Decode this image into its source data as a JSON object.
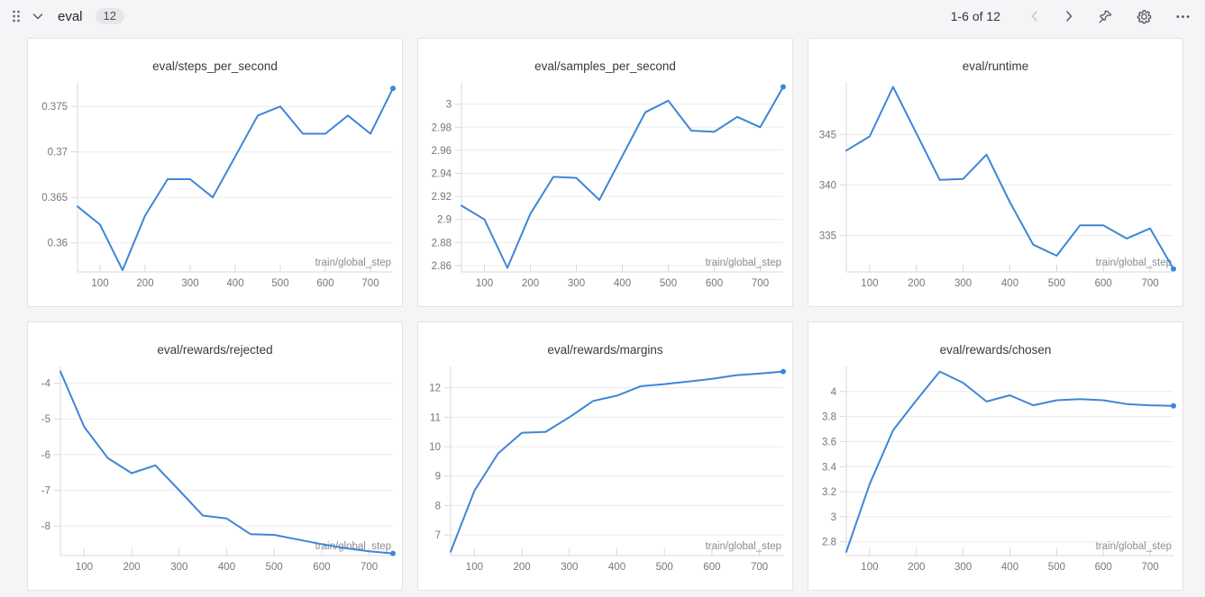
{
  "header": {
    "group_title": "eval",
    "panel_count": "12",
    "pagination": "1-6 of 12",
    "icons": [
      "drag-handle",
      "chevron-down",
      "chevron-left",
      "chevron-right",
      "pin",
      "gear",
      "overflow-menu"
    ]
  },
  "colors": {
    "accent": "#3e86d8",
    "background": "#f4f5f6",
    "card_border": "#e3e3e6",
    "grid_line": "#ececef",
    "axis_line": "#d9d9de",
    "tick_text": "#76767e",
    "axis_label_text": "#8c8c92",
    "title_text": "#3a3a40",
    "icon_color": "#54545c",
    "icon_disabled": "#c6c6cb"
  },
  "chart_data": [
    {
      "type": "line",
      "title": "eval/steps_per_second",
      "xlabel": "train/global_step",
      "x": [
        50,
        100,
        150,
        200,
        250,
        300,
        350,
        400,
        450,
        500,
        550,
        600,
        650,
        700,
        750
      ],
      "y": [
        0.364,
        0.362,
        0.357,
        0.363,
        0.367,
        0.367,
        0.365,
        0.3695,
        0.374,
        0.375,
        0.372,
        0.372,
        0.374,
        0.372,
        0.377
      ],
      "xticks": [
        100,
        200,
        300,
        400,
        500,
        600,
        700
      ],
      "yticks": [
        0.36,
        0.365,
        0.37,
        0.375
      ],
      "ytick_labels": [
        "0.36",
        "0.365",
        "0.37",
        "0.375"
      ],
      "xlim": [
        50,
        750
      ],
      "ylim": [
        0.3568,
        0.3776
      ],
      "end_marker": true,
      "grid": true,
      "legend": false
    },
    {
      "type": "line",
      "title": "eval/samples_per_second",
      "xlabel": "train/global_step",
      "x": [
        50,
        100,
        150,
        200,
        250,
        300,
        350,
        400,
        450,
        500,
        550,
        600,
        650,
        700,
        750
      ],
      "y": [
        2.912,
        2.9,
        2.858,
        2.905,
        2.937,
        2.936,
        2.917,
        2.955,
        2.993,
        3.003,
        2.977,
        2.976,
        2.989,
        2.98,
        3.015
      ],
      "xticks": [
        100,
        200,
        300,
        400,
        500,
        600,
        700
      ],
      "yticks": [
        2.86,
        2.88,
        2.9,
        2.92,
        2.94,
        2.96,
        2.98,
        3
      ],
      "ytick_labels": [
        "2.86",
        "2.88",
        "2.9",
        "2.92",
        "2.94",
        "2.96",
        "2.98",
        "3"
      ],
      "xlim": [
        50,
        750
      ],
      "ylim": [
        2.8545,
        3.0185
      ],
      "end_marker": true,
      "grid": true,
      "legend": false
    },
    {
      "type": "line",
      "title": "eval/runtime",
      "xlabel": "train/global_step",
      "x": [
        50,
        100,
        150,
        200,
        250,
        300,
        350,
        400,
        450,
        500,
        550,
        600,
        650,
        700,
        750
      ],
      "y": [
        343.4,
        344.8,
        349.7,
        345.1,
        340.5,
        340.6,
        343.0,
        338.3,
        334.1,
        333.0,
        336.0,
        336.0,
        334.7,
        335.7,
        331.7
      ],
      "xticks": [
        100,
        200,
        300,
        400,
        500,
        600,
        700
      ],
      "yticks": [
        335,
        340,
        345
      ],
      "ytick_labels": [
        "335",
        "340",
        "345"
      ],
      "xlim": [
        50,
        750
      ],
      "ylim": [
        331.4,
        350.1
      ],
      "end_marker": true,
      "grid": true,
      "legend": false
    },
    {
      "type": "line",
      "title": "eval/rewards/rejected",
      "xlabel": "train/global_step",
      "x": [
        50,
        100,
        150,
        200,
        250,
        300,
        350,
        400,
        450,
        500,
        550,
        600,
        650,
        700,
        750
      ],
      "y": [
        -3.67,
        -5.22,
        -6.1,
        -6.52,
        -6.3,
        -7.0,
        -7.71,
        -7.79,
        -8.23,
        -8.25,
        -8.38,
        -8.51,
        -8.62,
        -8.71,
        -8.77
      ],
      "xticks": [
        100,
        200,
        300,
        400,
        500,
        600,
        700
      ],
      "yticks": [
        -8,
        -7,
        -6,
        -5,
        -4
      ],
      "ytick_labels": [
        "-8",
        "-7",
        "-6",
        "-5",
        "-4"
      ],
      "xlim": [
        50,
        750
      ],
      "ylim": [
        -8.83,
        -3.53
      ],
      "end_marker": true,
      "grid": true,
      "legend": false
    },
    {
      "type": "line",
      "title": "eval/rewards/margins",
      "xlabel": "train/global_step",
      "x": [
        50,
        100,
        150,
        200,
        250,
        300,
        350,
        400,
        450,
        500,
        550,
        600,
        650,
        700,
        750
      ],
      "y": [
        6.43,
        8.5,
        9.77,
        10.47,
        10.5,
        11.0,
        11.55,
        11.73,
        12.05,
        12.12,
        12.21,
        12.3,
        12.42,
        12.48,
        12.55
      ],
      "xticks": [
        100,
        200,
        300,
        400,
        500,
        600,
        700
      ],
      "yticks": [
        7,
        8,
        9,
        10,
        11,
        12
      ],
      "ytick_labels": [
        "7",
        "8",
        "9",
        "10",
        "11",
        "12"
      ],
      "xlim": [
        50,
        750
      ],
      "ylim": [
        6.3,
        12.72
      ],
      "end_marker": true,
      "grid": true,
      "legend": false
    },
    {
      "type": "line",
      "title": "eval/rewards/chosen",
      "xlabel": "train/global_step",
      "x": [
        50,
        100,
        150,
        200,
        250,
        300,
        350,
        400,
        450,
        500,
        550,
        600,
        650,
        700,
        750
      ],
      "y": [
        2.72,
        3.26,
        3.69,
        3.93,
        4.16,
        4.07,
        3.92,
        3.97,
        3.89,
        3.93,
        3.94,
        3.93,
        3.9,
        3.89,
        3.885
      ],
      "xticks": [
        100,
        200,
        300,
        400,
        500,
        600,
        700
      ],
      "yticks": [
        2.8,
        3,
        3.2,
        3.4,
        3.6,
        3.8,
        4
      ],
      "ytick_labels": [
        "2.8",
        "3",
        "3.2",
        "3.4",
        "3.6",
        "3.8",
        "4"
      ],
      "xlim": [
        50,
        750
      ],
      "ylim": [
        2.69,
        4.2
      ],
      "end_marker": true,
      "grid": true,
      "legend": false
    }
  ]
}
